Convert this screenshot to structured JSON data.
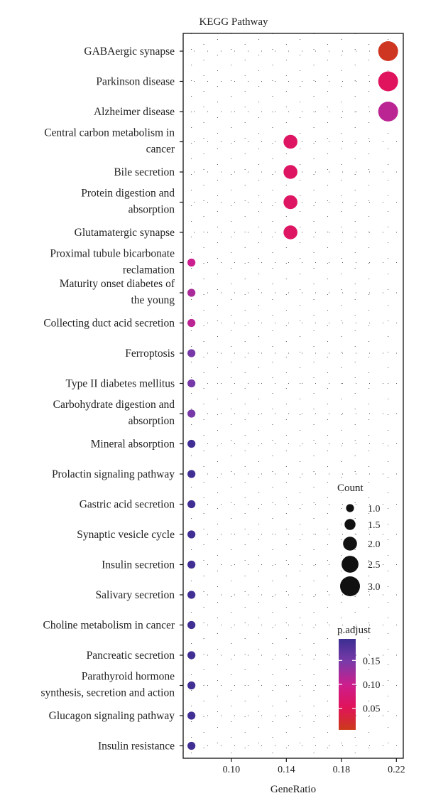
{
  "chart_data": {
    "type": "scatter",
    "title": "KEGG Pathway",
    "xlabel": "GeneRatio",
    "ylabel": "",
    "xlim": [
      0.065,
      0.225
    ],
    "xticks": [
      "0.10",
      "0.14",
      "0.18",
      "0.22"
    ],
    "grid": "dotted",
    "categories": [
      [
        "GABAergic synapse"
      ],
      [
        "Parkinson disease"
      ],
      [
        "Alzheimer disease"
      ],
      [
        "Central carbon metabolism in",
        "cancer"
      ],
      [
        "Bile secretion"
      ],
      [
        "Protein digestion and",
        "absorption"
      ],
      [
        "Glutamatergic synapse"
      ],
      [
        "Proximal tubule bicarbonate",
        "reclamation"
      ],
      [
        "Maturity onset diabetes of",
        "the young"
      ],
      [
        "Collecting duct acid secretion"
      ],
      [
        "Ferroptosis"
      ],
      [
        "Type II diabetes mellitus"
      ],
      [
        "Carbohydrate digestion and",
        "absorption"
      ],
      [
        "Mineral absorption"
      ],
      [
        "Prolactin signaling pathway"
      ],
      [
        "Gastric acid secretion"
      ],
      [
        "Synaptic vesicle cycle"
      ],
      [
        "Insulin secretion"
      ],
      [
        "Salivary secretion"
      ],
      [
        "Choline metabolism in cancer"
      ],
      [
        "Pancreatic secretion"
      ],
      [
        "Parathyroid hormone",
        "synthesis, secretion and action"
      ],
      [
        "Glucagon signaling pathway"
      ],
      [
        "Insulin resistance"
      ]
    ],
    "points": [
      {
        "gene_ratio": 0.214,
        "count": 3,
        "p_adjust": 0.01
      },
      {
        "gene_ratio": 0.214,
        "count": 3,
        "p_adjust": 0.055
      },
      {
        "gene_ratio": 0.214,
        "count": 3,
        "p_adjust": 0.11
      },
      {
        "gene_ratio": 0.143,
        "count": 2,
        "p_adjust": 0.06
      },
      {
        "gene_ratio": 0.143,
        "count": 2,
        "p_adjust": 0.06
      },
      {
        "gene_ratio": 0.143,
        "count": 2,
        "p_adjust": 0.06
      },
      {
        "gene_ratio": 0.143,
        "count": 2,
        "p_adjust": 0.06
      },
      {
        "gene_ratio": 0.071,
        "count": 1,
        "p_adjust": 0.1
      },
      {
        "gene_ratio": 0.071,
        "count": 1,
        "p_adjust": 0.12
      },
      {
        "gene_ratio": 0.071,
        "count": 1,
        "p_adjust": 0.11
      },
      {
        "gene_ratio": 0.071,
        "count": 1,
        "p_adjust": 0.15
      },
      {
        "gene_ratio": 0.071,
        "count": 1,
        "p_adjust": 0.15
      },
      {
        "gene_ratio": 0.071,
        "count": 1,
        "p_adjust": 0.15
      },
      {
        "gene_ratio": 0.071,
        "count": 1,
        "p_adjust": 0.19
      },
      {
        "gene_ratio": 0.071,
        "count": 1,
        "p_adjust": 0.19
      },
      {
        "gene_ratio": 0.071,
        "count": 1,
        "p_adjust": 0.19
      },
      {
        "gene_ratio": 0.071,
        "count": 1,
        "p_adjust": 0.19
      },
      {
        "gene_ratio": 0.071,
        "count": 1,
        "p_adjust": 0.19
      },
      {
        "gene_ratio": 0.071,
        "count": 1,
        "p_adjust": 0.19
      },
      {
        "gene_ratio": 0.071,
        "count": 1,
        "p_adjust": 0.19
      },
      {
        "gene_ratio": 0.071,
        "count": 1,
        "p_adjust": 0.19
      },
      {
        "gene_ratio": 0.071,
        "count": 1,
        "p_adjust": 0.19
      },
      {
        "gene_ratio": 0.071,
        "count": 1,
        "p_adjust": 0.19
      },
      {
        "gene_ratio": 0.071,
        "count": 1,
        "p_adjust": 0.19
      }
    ],
    "size_legend": {
      "title": "Count",
      "labels": [
        "1.0",
        "1.5",
        "2.0",
        "2.5",
        "3.0"
      ],
      "values": [
        1.0,
        1.5,
        2.0,
        2.5,
        3.0
      ],
      "color": "#111111"
    },
    "color_legend": {
      "title": "p.adjust",
      "labels": [
        "0.15",
        "0.10",
        "0.05"
      ],
      "values": [
        0.15,
        0.1,
        0.05
      ],
      "range": [
        0.005,
        0.195
      ],
      "colors": [
        "#cc3a1a",
        "#e0135a",
        "#cc1e8e",
        "#7a3aa8",
        "#3b2e92"
      ]
    }
  }
}
